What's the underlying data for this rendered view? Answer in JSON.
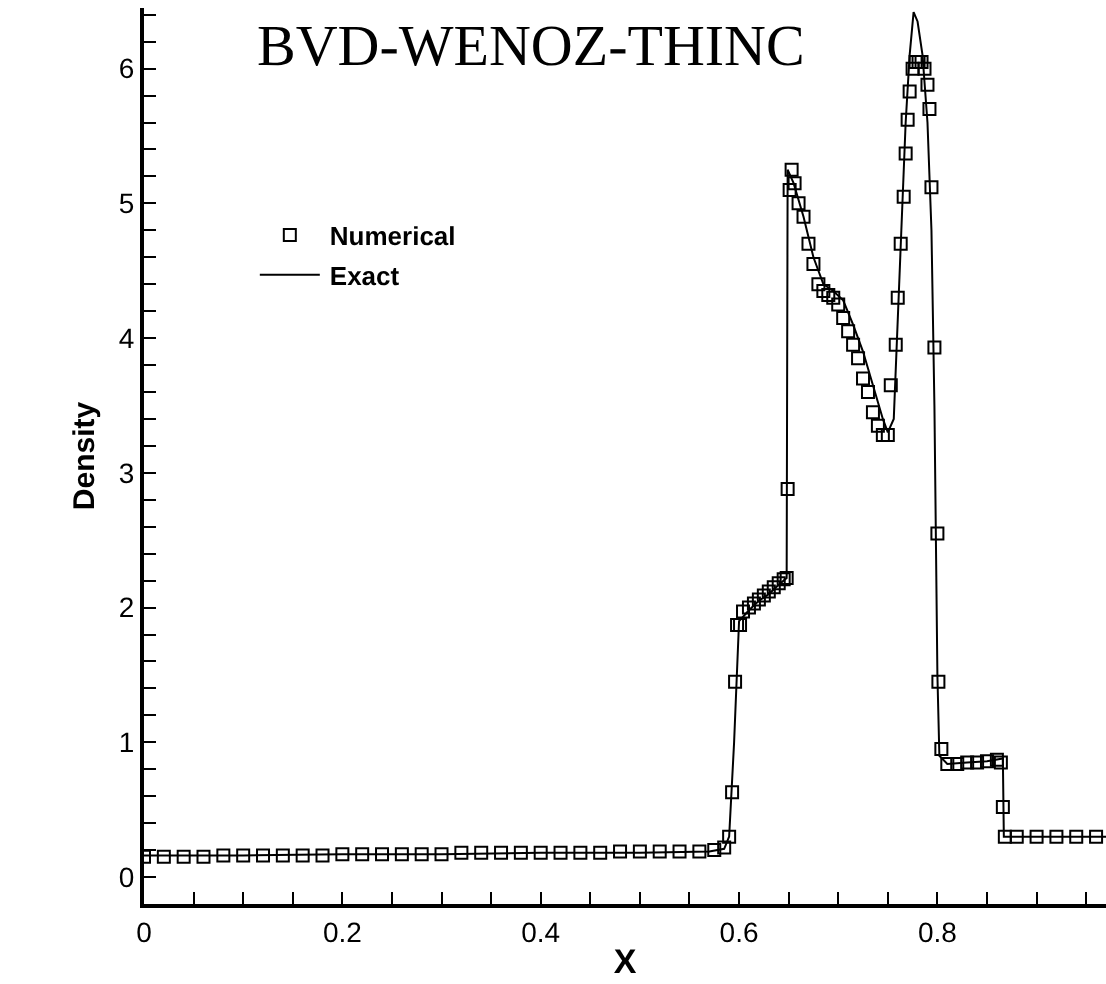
{
  "chart_data": {
    "type": "scatter",
    "title": "BVD-WENOZ-THINC",
    "xlabel": "X",
    "ylabel": "Density",
    "legend": "top left",
    "xlim": [
      0,
      0.97
    ],
    "ylim": [
      -0.2,
      6.45
    ],
    "xticks": [
      0,
      {
        "value": 0.05,
        "label": null
      },
      {
        "value": 0.1,
        "label": null
      },
      {
        "value": 0.15,
        "label": null
      },
      0.2,
      {
        "value": 0.25,
        "label": null
      },
      {
        "value": 0.3,
        "label": null
      },
      {
        "value": 0.35,
        "label": null
      },
      0.4,
      {
        "value": 0.45,
        "label": null
      },
      {
        "value": 0.5,
        "label": null
      },
      {
        "value": 0.55,
        "label": null
      },
      0.6,
      {
        "value": 0.65,
        "label": null
      },
      {
        "value": 0.7,
        "label": null
      },
      {
        "value": 0.75,
        "label": null
      },
      0.8,
      {
        "value": 0.85,
        "label": null
      },
      {
        "value": 0.9,
        "label": null
      },
      {
        "value": 0.95,
        "label": null
      }
    ],
    "yticks": [
      0,
      {
        "value": 0.2,
        "label": null
      },
      {
        "value": 0.4,
        "label": null
      },
      {
        "value": 0.6,
        "label": null
      },
      {
        "value": 0.8,
        "label": null
      },
      1,
      {
        "value": 1.2,
        "label": null
      },
      {
        "value": 1.4,
        "label": null
      },
      {
        "value": 1.6,
        "label": null
      },
      {
        "value": 1.8,
        "label": null
      },
      2,
      {
        "value": 2.2,
        "label": null
      },
      {
        "value": 2.4,
        "label": null
      },
      {
        "value": 2.6,
        "label": null
      },
      {
        "value": 2.8,
        "label": null
      },
      3,
      {
        "value": 3.2,
        "label": null
      },
      {
        "value": 3.4,
        "label": null
      },
      {
        "value": 3.6,
        "label": null
      },
      {
        "value": 3.8,
        "label": null
      },
      4,
      {
        "value": 4.2,
        "label": null
      },
      {
        "value": 4.4,
        "label": null
      },
      {
        "value": 4.6,
        "label": null
      },
      {
        "value": 4.8,
        "label": null
      },
      5,
      {
        "value": 5.2,
        "label": null
      },
      {
        "value": 5.4,
        "label": null
      },
      {
        "value": 5.6,
        "label": null
      },
      {
        "value": 5.8,
        "label": null
      },
      6,
      {
        "value": 6.2,
        "label": null
      },
      {
        "value": 6.4,
        "label": null
      }
    ],
    "series": [
      {
        "name": "Numerical",
        "marker": "square",
        "color": "#000000",
        "x": [
          0,
          0.02,
          0.04,
          0.06,
          0.08,
          0.1,
          0.12,
          0.14,
          0.16,
          0.18,
          0.2,
          0.22,
          0.24,
          0.26,
          0.28,
          0.3,
          0.32,
          0.34,
          0.36,
          0.38,
          0.4,
          0.42,
          0.44,
          0.46,
          0.48,
          0.5,
          0.52,
          0.54,
          0.56,
          0.575,
          0.585,
          0.59,
          0.593,
          0.596,
          0.598,
          0.601,
          0.604,
          0.61,
          0.615,
          0.62,
          0.625,
          0.63,
          0.635,
          0.64,
          0.645,
          0.648,
          0.649,
          0.651,
          0.653,
          0.656,
          0.66,
          0.665,
          0.67,
          0.675,
          0.68,
          0.685,
          0.69,
          0.695,
          0.7,
          0.705,
          0.71,
          0.715,
          0.72,
          0.725,
          0.73,
          0.735,
          0.74,
          0.745,
          0.75,
          0.753,
          0.758,
          0.76,
          0.763,
          0.766,
          0.768,
          0.77,
          0.772,
          0.775,
          0.778,
          0.781,
          0.784,
          0.787,
          0.79,
          0.792,
          0.794,
          0.797,
          0.8,
          0.801,
          0.804,
          0.81,
          0.82,
          0.83,
          0.84,
          0.85,
          0.86,
          0.864,
          0.866,
          0.868,
          0.88,
          0.9,
          0.92,
          0.94,
          0.96
        ],
        "values": [
          0.15,
          0.15,
          0.15,
          0.15,
          0.16,
          0.16,
          0.16,
          0.16,
          0.16,
          0.16,
          0.17,
          0.17,
          0.17,
          0.17,
          0.17,
          0.17,
          0.18,
          0.18,
          0.18,
          0.18,
          0.18,
          0.18,
          0.18,
          0.18,
          0.19,
          0.19,
          0.19,
          0.19,
          0.19,
          0.2,
          0.22,
          0.3,
          0.63,
          1.45,
          1.87,
          1.87,
          1.97,
          2.0,
          2.03,
          2.06,
          2.09,
          2.12,
          2.15,
          2.18,
          2.21,
          2.22,
          2.88,
          5.1,
          5.25,
          5.15,
          5.0,
          4.9,
          4.7,
          4.55,
          4.4,
          4.35,
          4.32,
          4.3,
          4.25,
          4.15,
          4.05,
          3.95,
          3.85,
          3.7,
          3.6,
          3.45,
          3.35,
          3.28,
          3.28,
          3.65,
          3.95,
          4.3,
          4.7,
          5.05,
          5.37,
          5.62,
          5.83,
          6.0,
          6.05,
          6.05,
          6.05,
          6.0,
          5.88,
          5.7,
          5.12,
          3.93,
          2.55,
          1.45,
          0.95,
          0.84,
          0.84,
          0.85,
          0.85,
          0.86,
          0.87,
          0.85,
          0.52,
          0.3,
          0.3,
          0.3,
          0.3,
          0.3,
          0.3
        ]
      },
      {
        "name": "Exact",
        "type": "line",
        "marker": "none",
        "line_style": "solid",
        "color": "#000000",
        "x": [
          0,
          0.1,
          0.2,
          0.3,
          0.4,
          0.5,
          0.57,
          0.585,
          0.59,
          0.595,
          0.6,
          0.61,
          0.62,
          0.63,
          0.64,
          0.648,
          0.649,
          0.655,
          0.665,
          0.675,
          0.685,
          0.695,
          0.705,
          0.715,
          0.725,
          0.735,
          0.745,
          0.75,
          0.756,
          0.762,
          0.768,
          0.772,
          0.776,
          0.78,
          0.785,
          0.79,
          0.794,
          0.797,
          0.8,
          0.802,
          0.81,
          0.83,
          0.85,
          0.866,
          0.867,
          0.97
        ],
        "values": [
          0.16,
          0.16,
          0.17,
          0.17,
          0.18,
          0.18,
          0.19,
          0.21,
          0.3,
          1.0,
          1.9,
          1.98,
          2.05,
          2.1,
          2.17,
          2.22,
          5.25,
          5.15,
          4.9,
          4.6,
          4.4,
          4.35,
          4.28,
          4.1,
          3.9,
          3.65,
          3.4,
          3.3,
          3.4,
          4.5,
          5.6,
          6.1,
          6.42,
          6.35,
          6.1,
          5.6,
          4.8,
          3.5,
          1.5,
          0.9,
          0.84,
          0.85,
          0.86,
          0.88,
          0.3,
          0.3
        ]
      }
    ]
  }
}
